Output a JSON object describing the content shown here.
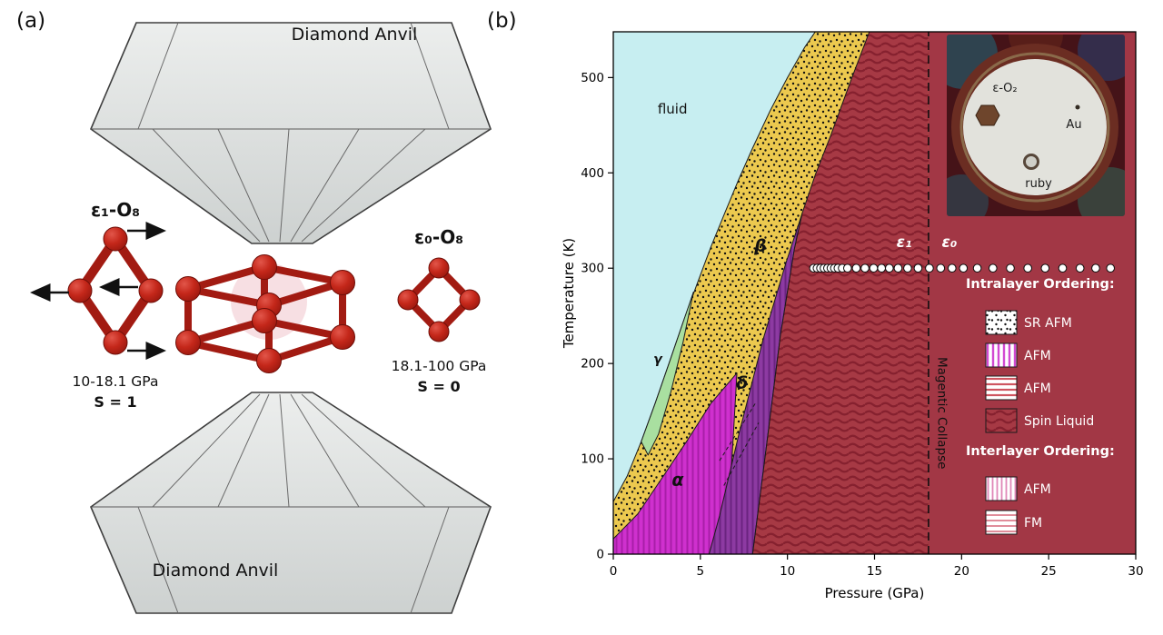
{
  "figure": {
    "panel_a_label": "(a)",
    "panel_b_label": "(b)"
  },
  "panel_a": {
    "anvil_top_label": "Diamond Anvil",
    "anvil_bottom_label": "Diamond Anvil",
    "left_motif": {
      "title": "ε₁-O₈",
      "pressure_range": "10-18.1 GPa",
      "spin": "S = 1"
    },
    "right_motif": {
      "title": "ε₀-O₈",
      "pressure_range": "18.1-100 GPa",
      "spin": "S = 0"
    }
  },
  "chart_data": {
    "type": "area",
    "subtype": "phase-diagram",
    "title": "",
    "xlabel": "Pressure (GPa)",
    "ylabel": "Temperature (K)",
    "xlim": [
      0,
      30
    ],
    "ylim": [
      0,
      548
    ],
    "x_ticks": [
      0,
      5,
      10,
      15,
      20,
      25,
      30
    ],
    "y_ticks": [
      0,
      100,
      200,
      300,
      400,
      500
    ],
    "regions": [
      {
        "name": "fluid",
        "fill": "#c7eef1",
        "stroke": "none",
        "points": [
          [
            0,
            0
          ],
          [
            30,
            0
          ],
          [
            30,
            548
          ],
          [
            0,
            548
          ]
        ]
      },
      {
        "name": "beta",
        "pattern": "pat-beta",
        "stroke": "#1a1a1a",
        "points": [
          [
            0,
            55
          ],
          [
            0.8,
            82
          ],
          [
            1.6,
            118
          ],
          [
            2.4,
            158
          ],
          [
            3.2,
            200
          ],
          [
            4,
            243
          ],
          [
            4.8,
            283
          ],
          [
            5.6,
            322
          ],
          [
            6.4,
            358
          ],
          [
            7.2,
            393
          ],
          [
            8,
            426
          ],
          [
            9,
            465
          ],
          [
            10,
            500
          ],
          [
            11,
            532
          ],
          [
            11.6,
            548
          ],
          [
            30,
            548
          ],
          [
            30,
            0
          ],
          [
            0,
            0
          ]
        ]
      },
      {
        "name": "gamma",
        "fill": "#a9dfa0",
        "stroke": "#1a1a1a",
        "points": [
          [
            1.6,
            118
          ],
          [
            2.4,
            158
          ],
          [
            3.2,
            200
          ],
          [
            4,
            243
          ],
          [
            4.6,
            275
          ],
          [
            4.0,
            222
          ],
          [
            3.3,
            170
          ],
          [
            2.6,
            126
          ],
          [
            2.0,
            104
          ]
        ]
      },
      {
        "name": "alpha",
        "pattern": "pat-alpha",
        "stroke": "#1a1a1a",
        "points": [
          [
            0,
            0
          ],
          [
            6.5,
            0
          ],
          [
            6.8,
            95
          ],
          [
            7.1,
            190
          ],
          [
            5.6,
            158
          ],
          [
            4.2,
            118
          ],
          [
            2.8,
            80
          ],
          [
            1.4,
            42
          ],
          [
            0,
            16
          ]
        ]
      },
      {
        "name": "delta",
        "pattern": "pat-delta",
        "stroke": "#1a1a1a",
        "points": [
          [
            5.5,
            0
          ],
          [
            8,
            0
          ],
          [
            8.7,
            100
          ],
          [
            9.6,
            230
          ],
          [
            10.4,
            320
          ],
          [
            10.85,
            358
          ],
          [
            9.9,
            305
          ],
          [
            8.6,
            225
          ],
          [
            7.2,
            125
          ],
          [
            6.1,
            40
          ]
        ]
      },
      {
        "name": "epsilon1",
        "pattern": "pat-eps",
        "stroke": "none",
        "points": [
          [
            8,
            0
          ],
          [
            18.1,
            0
          ],
          [
            18.1,
            548
          ],
          [
            14.7,
            548
          ],
          [
            13.6,
            495
          ],
          [
            12.5,
            440
          ],
          [
            11.6,
            398
          ],
          [
            10.85,
            358
          ],
          [
            10.4,
            320
          ],
          [
            9.6,
            230
          ],
          [
            8.7,
            100
          ]
        ]
      },
      {
        "name": "epsilon0",
        "fill": "#a23745",
        "stroke": "none",
        "points": [
          [
            18.1,
            0
          ],
          [
            30,
            0
          ],
          [
            30,
            548
          ],
          [
            18.1,
            548
          ]
        ]
      }
    ],
    "boundaries": [
      {
        "name": "epsilon1-left",
        "points": [
          [
            14.7,
            548
          ],
          [
            13.6,
            495
          ],
          [
            12.5,
            440
          ],
          [
            11.6,
            398
          ],
          [
            10.85,
            358
          ],
          [
            10.4,
            320
          ],
          [
            9.6,
            230
          ],
          [
            8.7,
            100
          ],
          [
            8,
            0
          ]
        ]
      }
    ],
    "dashed_boundaries": [
      [
        [
          6.1,
          98
        ],
        [
          8.15,
          158
        ]
      ],
      [
        [
          6.35,
          72
        ],
        [
          8.35,
          138
        ]
      ]
    ],
    "transition_line": {
      "x": 18.1,
      "style": "dashed"
    },
    "vertical_annotation": {
      "text": "Magentic Collapse",
      "x": 18.65,
      "y": 148
    },
    "scatter": {
      "name": "experimental points at 300 K",
      "T": 300,
      "P": [
        11.5,
        11.7,
        11.9,
        12.1,
        12.3,
        12.5,
        12.7,
        12.9,
        13.15,
        13.45,
        13.95,
        14.45,
        14.95,
        15.4,
        15.85,
        16.35,
        16.9,
        17.5,
        18.15,
        18.8,
        19.45,
        20.1,
        20.9,
        21.8,
        22.8,
        23.8,
        24.8,
        25.8,
        26.8,
        27.7,
        28.55
      ]
    },
    "phase_labels": [
      {
        "name": "fluid",
        "text": "fluid",
        "x": 3.4,
        "y": 462,
        "color": "#111111",
        "size": 15,
        "italic": false,
        "bold": false
      },
      {
        "name": "beta",
        "text": "β",
        "x": 8.45,
        "y": 318,
        "color": "#111111",
        "size": 19,
        "italic": true,
        "bold": true
      },
      {
        "name": "gamma",
        "text": "γ",
        "x": 2.55,
        "y": 200,
        "color": "#111111",
        "size": 14,
        "italic": true,
        "bold": true
      },
      {
        "name": "alpha",
        "text": "α",
        "x": 3.7,
        "y": 72,
        "color": "#111111",
        "size": 19,
        "italic": true,
        "bold": true
      },
      {
        "name": "delta",
        "text": "δ",
        "x": 7.4,
        "y": 174,
        "color": "#111111",
        "size": 19,
        "italic": true,
        "bold": true
      },
      {
        "name": "epsilon1",
        "text": "ε₁",
        "x": 16.7,
        "y": 322,
        "color": "#ffffff",
        "size": 17,
        "italic": true,
        "bold": true
      },
      {
        "name": "epsilon0",
        "text": "ε₀",
        "x": 19.3,
        "y": 322,
        "color": "#ffffff",
        "size": 17,
        "italic": true,
        "bold": true
      }
    ],
    "legend": {
      "intralayer_title": "Intralayer Ordering:",
      "intralayer": [
        {
          "label": "SR AFM",
          "pattern": "pat-leg-dots"
        },
        {
          "label": "AFM",
          "pattern": "pat-leg-vmag"
        },
        {
          "label": "AFM",
          "pattern": "pat-leg-hred"
        },
        {
          "label": "Spin Liquid",
          "pattern": "pat-eps"
        }
      ],
      "interlayer_title": "Interlayer Ordering:",
      "interlayer": [
        {
          "label": "AFM",
          "pattern": "pat-leg-vpink"
        },
        {
          "label": "FM",
          "pattern": "pat-leg-hpink"
        }
      ]
    },
    "inset": {
      "labels": [
        {
          "text": "ε-O₂"
        },
        {
          "text": "Au"
        },
        {
          "text": "ruby"
        }
      ]
    }
  }
}
